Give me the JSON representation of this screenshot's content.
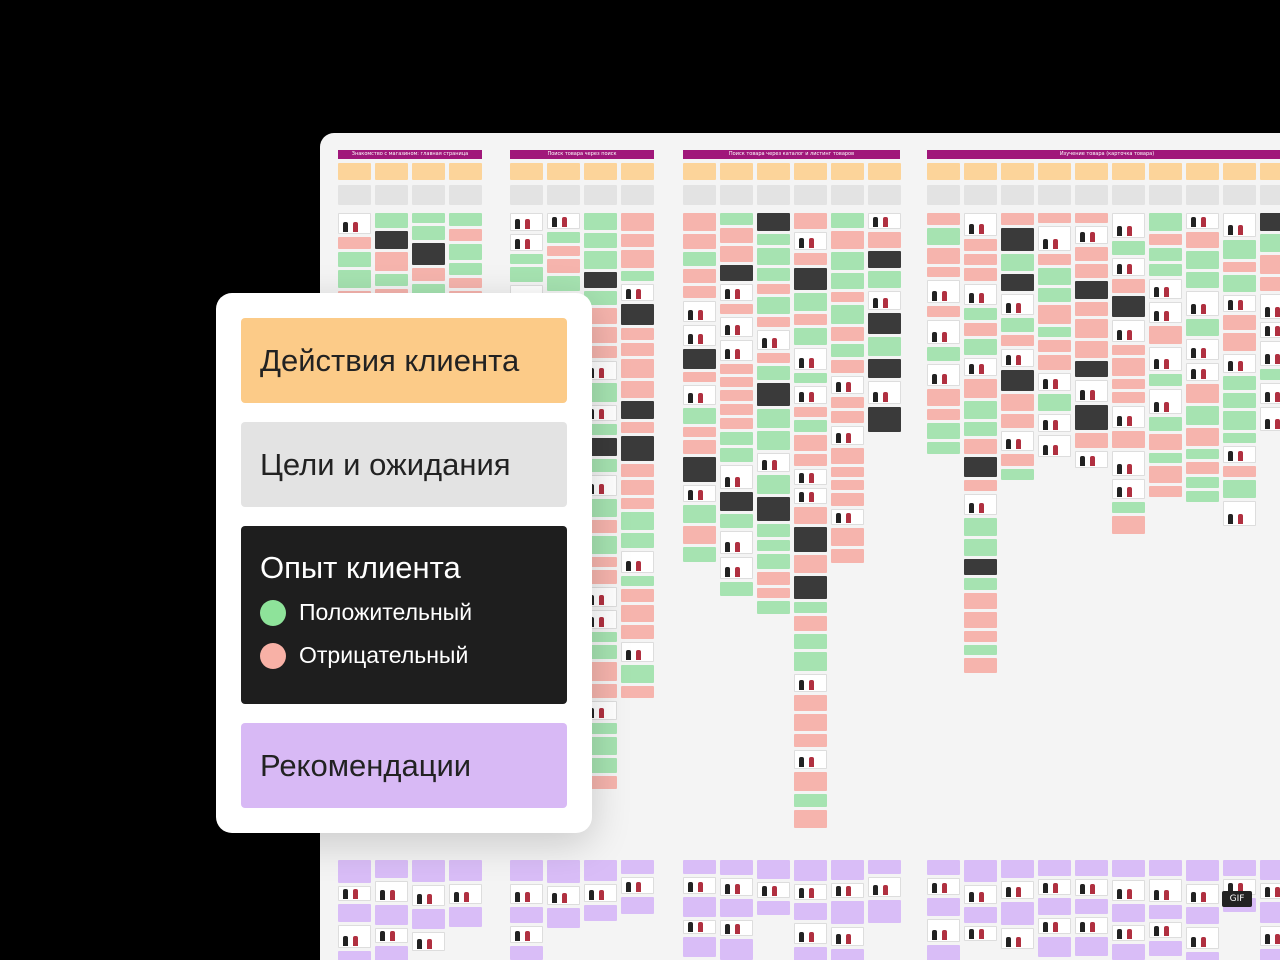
{
  "board": {
    "stages": [
      "Знакомство с магазином: главная страница",
      "Поиск товара через поиск",
      "Поиск товара через каталог и листинг товаров",
      "Изучение товара (карточка товара)"
    ],
    "gif_label": "GIF"
  },
  "legend": {
    "actions": "Действия клиента",
    "goals": "Цели и ожидания",
    "experience": "Опыт клиента",
    "positive": "Положительный",
    "negative": "Отрицательный",
    "recommendations": "Рекомендации"
  },
  "colors": {
    "actions": "#fccb88",
    "goals": "#e3e3e3",
    "experience": "#1e1e1e",
    "positive": "#8ee39a",
    "negative": "#f8b1a6",
    "recommendations": "#d8b9f5",
    "stage_header": "#a0177a"
  }
}
